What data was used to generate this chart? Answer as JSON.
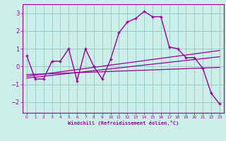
{
  "xlabel": "Windchill (Refroidissement éolien,°C)",
  "bg_color": "#cceee8",
  "line_color": "#990099",
  "grid_color": "#99cccc",
  "x_values": [
    0,
    1,
    2,
    3,
    4,
    5,
    6,
    7,
    8,
    9,
    10,
    11,
    12,
    13,
    14,
    15,
    16,
    17,
    18,
    19,
    20,
    21,
    22,
    23
  ],
  "y_main": [
    0.6,
    -0.7,
    -0.7,
    0.3,
    0.3,
    1.0,
    -0.8,
    1.0,
    0.0,
    -0.7,
    0.4,
    1.9,
    2.5,
    2.7,
    3.1,
    2.8,
    2.8,
    1.1,
    1.0,
    0.5,
    0.5,
    -0.1,
    -1.5,
    -2.1
  ],
  "reg1_y0": -0.55,
  "reg1_y1": 0.9,
  "reg2_y0": -0.65,
  "reg2_y1": 0.55,
  "reg3_y0": -0.45,
  "reg3_y1": -0.05,
  "ylim": [
    -2.6,
    3.5
  ],
  "xlim": [
    -0.5,
    23.5
  ],
  "yticks": [
    -2,
    -1,
    0,
    1,
    2,
    3
  ],
  "xticks": [
    0,
    1,
    2,
    3,
    4,
    5,
    6,
    7,
    8,
    9,
    10,
    11,
    12,
    13,
    14,
    15,
    16,
    17,
    18,
    19,
    20,
    21,
    22,
    23
  ],
  "xtick_labels": [
    "0",
    "1",
    "2",
    "3",
    "4",
    "5",
    "6",
    "7",
    "8",
    "9",
    "10",
    "11",
    "12",
    "13",
    "14",
    "15",
    "16",
    "17",
    "18",
    "19",
    "20",
    "21",
    "22",
    "23"
  ]
}
